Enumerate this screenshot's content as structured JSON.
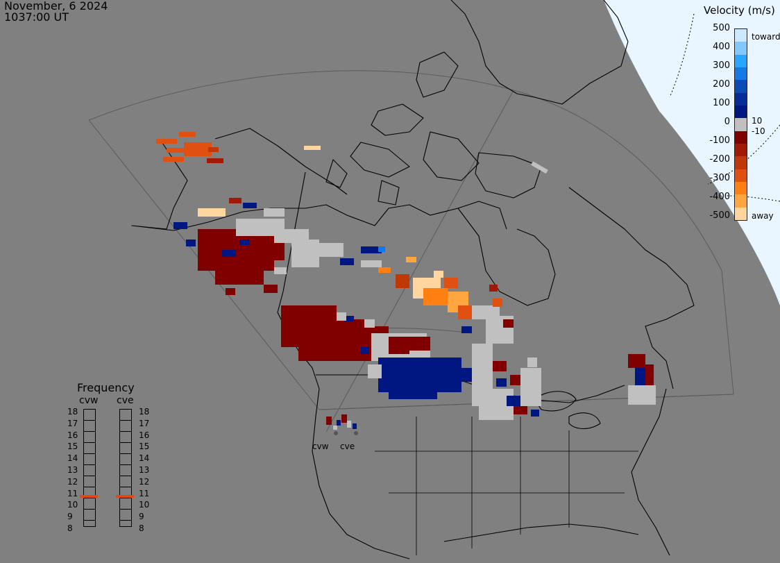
{
  "header": {
    "date": "November, 6 2024",
    "time": "1037:00 UT"
  },
  "velocity_legend": {
    "title": "Velocity (m/s)",
    "ticks": [
      "500",
      "400",
      "300",
      "200",
      "100",
      "0",
      "-100",
      "-200",
      "-300",
      "-400",
      "-500"
    ],
    "inner_labels": [
      "10",
      "-10"
    ],
    "toward_label": "toward",
    "away_label": "away",
    "colors": [
      "#cce8ff",
      "#82c8ff",
      "#26a6ff",
      "#1478e6",
      "#0a4bb5",
      "#062c96",
      "#001680",
      "#c0c0c0",
      "#800000",
      "#a01a06",
      "#c03808",
      "#e05010",
      "#ff7f10",
      "#ffa640",
      "#ffd6a0"
    ]
  },
  "frequency_legend": {
    "title": "Frequency",
    "columns": [
      "cvw",
      "cve"
    ],
    "levels": [
      "18",
      "17",
      "16",
      "15",
      "14",
      "13",
      "12",
      "11",
      "10",
      "9",
      "8"
    ],
    "selected_mhz": {
      "cvw": 11,
      "cve": 11
    },
    "marker_color": "#e2480f"
  },
  "stations": [
    {
      "id": "cvw",
      "label": "cvw"
    },
    {
      "id": "cve",
      "label": "cve"
    }
  ]
}
